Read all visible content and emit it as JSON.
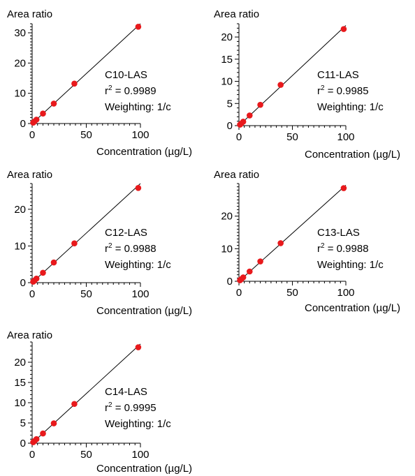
{
  "chart_data": [
    {
      "type": "scatter",
      "ylabel": "Area ratio",
      "xlabel": "Concentration (µg/L)",
      "xlim": [
        0,
        100
      ],
      "ylim": [
        0,
        33
      ],
      "xticks": [
        0,
        50,
        100
      ],
      "yticks": [
        0,
        10,
        20,
        30
      ],
      "yminor": 1,
      "xminor": 5,
      "fit": {
        "slope": 0.33,
        "intercept": 0
      },
      "annotation": {
        "compound": "C10-LAS",
        "r2_prefix": "r",
        "r2_sup": "2",
        "r2_value": " = 0.9989",
        "weighting": "Weighting: 1/c"
      },
      "series": [
        {
          "x": [
            1,
            2,
            4,
            10,
            20,
            39,
            98
          ],
          "y": [
            0.3,
            0.66,
            1.3,
            3.3,
            6.6,
            13.2,
            32.0
          ]
        }
      ]
    },
    {
      "type": "scatter",
      "ylabel": "Area ratio",
      "xlabel": "Concentration (µg/L)",
      "xlim": [
        0,
        100
      ],
      "ylim": [
        0,
        23
      ],
      "xticks": [
        0,
        50,
        100
      ],
      "yticks": [
        0,
        5,
        10,
        15,
        20
      ],
      "yminor": 1,
      "xminor": 5,
      "fit": {
        "slope": 0.226,
        "intercept": 0
      },
      "annotation": {
        "compound": "C11-LAS",
        "r2_prefix": "r",
        "r2_sup": "2",
        "r2_value": " = 0.9985",
        "weighting": "Weighting: 1/c"
      },
      "series": [
        {
          "x": [
            1,
            2,
            4,
            10,
            20,
            39,
            98
          ],
          "y": [
            0.23,
            0.45,
            0.9,
            2.3,
            4.7,
            9.2,
            21.8
          ]
        }
      ]
    },
    {
      "type": "scatter",
      "ylabel": "Area ratio",
      "xlabel": "Concentration (µg/L)",
      "xlim": [
        0,
        100
      ],
      "ylim": [
        0,
        27
      ],
      "xticks": [
        0,
        50,
        100
      ],
      "yticks": [
        0,
        10,
        20
      ],
      "yminor": 1,
      "xminor": 5,
      "fit": {
        "slope": 0.27,
        "intercept": 0
      },
      "annotation": {
        "compound": "C12-LAS",
        "r2_prefix": "r",
        "r2_sup": "2",
        "r2_value": " = 0.9988",
        "weighting": "Weighting: 1/c"
      },
      "series": [
        {
          "x": [
            1,
            2,
            4,
            10,
            20,
            39,
            98
          ],
          "y": [
            0.27,
            0.55,
            1.1,
            2.7,
            5.5,
            10.7,
            25.8
          ]
        }
      ]
    },
    {
      "type": "scatter",
      "ylabel": "Area ratio",
      "xlabel": "Concentration (µg/L)",
      "xlim": [
        0,
        100
      ],
      "ylim": [
        0,
        30
      ],
      "xticks": [
        0,
        50,
        100
      ],
      "yticks": [
        0,
        10,
        20
      ],
      "yminor": 1,
      "xminor": 5,
      "fit": {
        "slope": 0.295,
        "intercept": 0
      },
      "annotation": {
        "compound": "C13-LAS",
        "r2_prefix": "r",
        "r2_sup": "2",
        "r2_value": " = 0.9988",
        "weighting": "Weighting: 1/c"
      },
      "series": [
        {
          "x": [
            1,
            2,
            4,
            10,
            20,
            39,
            98
          ],
          "y": [
            0.3,
            0.6,
            1.2,
            3.0,
            6.1,
            11.7,
            28.6
          ]
        }
      ]
    },
    {
      "type": "scatter",
      "ylabel": "Area ratio",
      "xlabel": "Concentration (µg/L)",
      "xlim": [
        0,
        100
      ],
      "ylim": [
        0,
        25
      ],
      "xticks": [
        0,
        50,
        100
      ],
      "yticks": [
        0,
        5,
        10,
        15,
        20
      ],
      "yminor": 1,
      "xminor": 5,
      "fit": {
        "slope": 0.245,
        "intercept": 0
      },
      "annotation": {
        "compound": "C14-LAS",
        "r2_prefix": "r",
        "r2_sup": "2",
        "r2_value": " = 0.9995",
        "weighting": "Weighting: 1/c"
      },
      "series": [
        {
          "x": [
            1,
            2,
            4,
            10,
            20,
            39,
            98
          ],
          "y": [
            0.25,
            0.5,
            1.0,
            2.4,
            4.9,
            9.7,
            23.7
          ]
        }
      ]
    }
  ],
  "colors": {
    "point": "#e8191c",
    "line": "#000000",
    "axis": "#000000"
  }
}
